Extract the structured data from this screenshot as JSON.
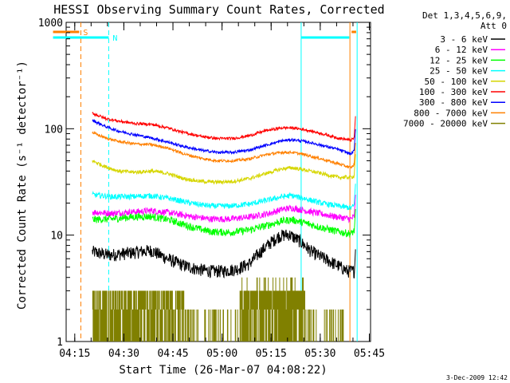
{
  "chart_data": {
    "type": "line",
    "title": "HESSI Observing Summary Count Rates, Corrected",
    "xlabel": "Start Time (26-Mar-07 04:08:22)",
    "ylabel": "Corrected Count Rate (s⁻¹ detector⁻¹)",
    "x_ticks": [
      "04:15",
      "04:30",
      "04:45",
      "05:00",
      "05:15",
      "05:30",
      "05:45"
    ],
    "xlim_minutes": [
      4.0,
      97.0
    ],
    "y_scale": "log",
    "ylim": [
      1,
      1000
    ],
    "y_ticks": [
      "1",
      "10",
      "100",
      "1000"
    ],
    "grid": false,
    "legend_position": "right",
    "legend_header": [
      "Det 1,3,4,5,6,9,",
      "Att 0"
    ],
    "series": [
      {
        "name": "3 - 6 keV",
        "color": "#000000",
        "points": [
          [
            12,
            7.0
          ],
          [
            17,
            6.5
          ],
          [
            23,
            6.8
          ],
          [
            30,
            7.2
          ],
          [
            35,
            6.0
          ],
          [
            40,
            5.2
          ],
          [
            44,
            4.8
          ],
          [
            48,
            4.6
          ],
          [
            52,
            4.6
          ],
          [
            56,
            4.8
          ],
          [
            60,
            5.4
          ],
          [
            63,
            6.8
          ],
          [
            66,
            8.3
          ],
          [
            69,
            9.8
          ],
          [
            72,
            10.2
          ],
          [
            75,
            9.0
          ],
          [
            79,
            7.0
          ],
          [
            83,
            6.0
          ],
          [
            87,
            5.2
          ],
          [
            90,
            4.6
          ],
          [
            92,
            4.6
          ]
        ]
      },
      {
        "name": "6 - 12 keV",
        "color": "#ff00ff",
        "points": [
          [
            12,
            16.5
          ],
          [
            18,
            16.0
          ],
          [
            24,
            16.5
          ],
          [
            30,
            17.0
          ],
          [
            36,
            16.2
          ],
          [
            42,
            15.0
          ],
          [
            48,
            14.2
          ],
          [
            54,
            14.2
          ],
          [
            60,
            14.8
          ],
          [
            66,
            16.0
          ],
          [
            70,
            17.5
          ],
          [
            73,
            18.0
          ],
          [
            77,
            17.0
          ],
          [
            82,
            15.8
          ],
          [
            87,
            14.8
          ],
          [
            91,
            14.2
          ],
          [
            92,
            15.0
          ]
        ]
      },
      {
        "name": "12 - 25 keV",
        "color": "#00ff00",
        "points": [
          [
            12,
            14.0
          ],
          [
            18,
            14.2
          ],
          [
            24,
            14.8
          ],
          [
            30,
            15.0
          ],
          [
            36,
            13.8
          ],
          [
            42,
            12.0
          ],
          [
            48,
            10.8
          ],
          [
            54,
            10.6
          ],
          [
            60,
            11.2
          ],
          [
            66,
            12.5
          ],
          [
            70,
            13.6
          ],
          [
            73,
            14.0
          ],
          [
            77,
            13.0
          ],
          [
            82,
            11.8
          ],
          [
            87,
            10.8
          ],
          [
            91,
            10.3
          ],
          [
            92,
            11.0
          ]
        ]
      },
      {
        "name": "25 - 50 keV",
        "color": "#00ffff",
        "points": [
          [
            12,
            24.0
          ],
          [
            18,
            23.0
          ],
          [
            24,
            23.0
          ],
          [
            30,
            23.5
          ],
          [
            36,
            22.0
          ],
          [
            42,
            20.0
          ],
          [
            48,
            18.8
          ],
          [
            54,
            18.8
          ],
          [
            60,
            19.6
          ],
          [
            66,
            21.5
          ],
          [
            70,
            23.0
          ],
          [
            73,
            23.5
          ],
          [
            77,
            22.0
          ],
          [
            82,
            20.0
          ],
          [
            87,
            18.8
          ],
          [
            91,
            18.0
          ],
          [
            92,
            19.0
          ]
        ]
      },
      {
        "name": "50 - 100 keV",
        "color": "#d6d600",
        "points": [
          [
            12,
            50.0
          ],
          [
            16,
            44.0
          ],
          [
            20,
            40.0
          ],
          [
            25,
            39.0
          ],
          [
            30,
            40.0
          ],
          [
            35,
            38.0
          ],
          [
            40,
            34.0
          ],
          [
            45,
            32.0
          ],
          [
            50,
            31.5
          ],
          [
            55,
            32.0
          ],
          [
            60,
            34.0
          ],
          [
            65,
            38.0
          ],
          [
            70,
            42.0
          ],
          [
            73,
            43.0
          ],
          [
            77,
            41.0
          ],
          [
            82,
            38.0
          ],
          [
            87,
            35.0
          ],
          [
            91,
            35.0
          ],
          [
            92,
            36.0
          ]
        ]
      },
      {
        "name": "100 - 300 keV",
        "color": "#ff0000",
        "points": [
          [
            12,
            140.0
          ],
          [
            16,
            125.0
          ],
          [
            20,
            118.0
          ],
          [
            25,
            112.0
          ],
          [
            30,
            110.0
          ],
          [
            35,
            102.0
          ],
          [
            40,
            92.0
          ],
          [
            45,
            85.0
          ],
          [
            50,
            81.0
          ],
          [
            55,
            81.0
          ],
          [
            60,
            86.0
          ],
          [
            65,
            96.0
          ],
          [
            70,
            102.0
          ],
          [
            73,
            102.0
          ],
          [
            77,
            98.0
          ],
          [
            82,
            90.0
          ],
          [
            87,
            82.0
          ],
          [
            91,
            78.0
          ],
          [
            92,
            82.0
          ]
        ]
      },
      {
        "name": "300 - 800 keV",
        "color": "#0000ff",
        "points": [
          [
            12,
            120.0
          ],
          [
            16,
            105.0
          ],
          [
            20,
            95.0
          ],
          [
            25,
            88.0
          ],
          [
            30,
            82.0
          ],
          [
            35,
            75.0
          ],
          [
            40,
            68.0
          ],
          [
            45,
            63.0
          ],
          [
            50,
            60.0
          ],
          [
            55,
            60.0
          ],
          [
            60,
            63.0
          ],
          [
            65,
            70.0
          ],
          [
            70,
            77.0
          ],
          [
            73,
            79.0
          ],
          [
            77,
            76.0
          ],
          [
            82,
            70.0
          ],
          [
            87,
            64.0
          ],
          [
            91,
            58.0
          ],
          [
            92,
            62.0
          ]
        ]
      },
      {
        "name": "800 - 7000 keV",
        "color": "#ff8000",
        "points": [
          [
            12,
            92.0
          ],
          [
            16,
            82.0
          ],
          [
            20,
            76.0
          ],
          [
            25,
            72.0
          ],
          [
            30,
            71.0
          ],
          [
            35,
            66.0
          ],
          [
            40,
            58.0
          ],
          [
            45,
            53.0
          ],
          [
            50,
            50.0
          ],
          [
            55,
            50.0
          ],
          [
            60,
            52.0
          ],
          [
            65,
            57.0
          ],
          [
            70,
            60.0
          ],
          [
            73,
            60.0
          ],
          [
            77,
            57.0
          ],
          [
            82,
            52.0
          ],
          [
            87,
            47.0
          ],
          [
            91,
            43.0
          ],
          [
            92,
            46.0
          ]
        ]
      },
      {
        "name": "7000 - 20000 keV",
        "color": "#808000",
        "points": []
      }
    ],
    "annotations": [
      {
        "label": "S",
        "color": "#ff8000",
        "bar_minutes": [
          0,
          8
        ],
        "line_minutes": [
          8.5,
          90.7
        ]
      },
      {
        "label": "N",
        "color": "#00ffff",
        "bar_minutes": [
          0,
          17
        ],
        "line_minutes": [
          17,
          75.8,
          92.9
        ]
      }
    ]
  },
  "footer": {
    "date_stamp": "3-Dec-2009 12:42"
  }
}
